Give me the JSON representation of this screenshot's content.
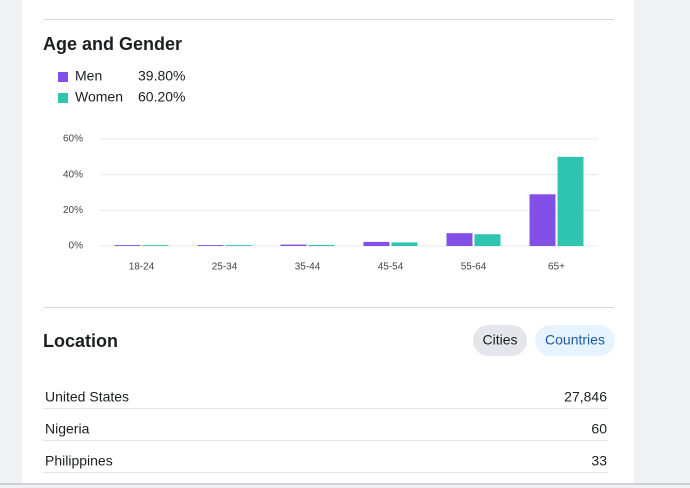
{
  "chart_data": {
    "type": "bar",
    "title": "Age and Gender",
    "categories": [
      "18-24",
      "25-34",
      "35-44",
      "45-54",
      "55-64",
      "65+"
    ],
    "series": [
      {
        "name": "Men",
        "share": "39.80%",
        "color": "#8250e6",
        "values": [
          0.5,
          0.5,
          0.8,
          2.3,
          7.2,
          29
        ]
      },
      {
        "name": "Women",
        "share": "60.20%",
        "color": "#2ec4b0",
        "values": [
          0.5,
          0.5,
          0.6,
          2,
          6.6,
          50
        ]
      }
    ],
    "ylim": [
      0,
      60
    ],
    "yticks": [
      {
        "value": 0,
        "label": "0%"
      },
      {
        "value": 20,
        "label": "20%"
      },
      {
        "value": 40,
        "label": "40%"
      },
      {
        "value": 60,
        "label": "60%"
      }
    ],
    "grid": true
  },
  "location": {
    "title": "Location",
    "buttons": [
      "Cities",
      "Countries"
    ],
    "rows": [
      [
        "United States",
        "27,846"
      ],
      [
        "Nigeria",
        "60"
      ],
      [
        "Philippines",
        "33"
      ]
    ]
  }
}
